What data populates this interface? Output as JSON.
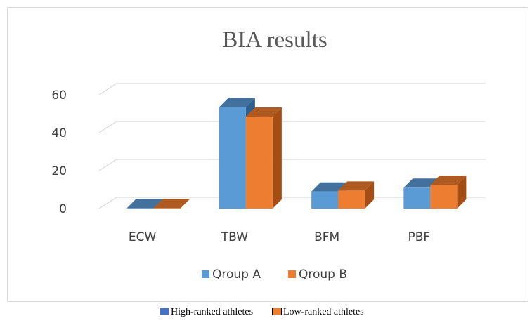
{
  "chart_data": {
    "type": "bar",
    "title": "BIA results",
    "xlabel": "",
    "ylabel": "",
    "categories": [
      "ECW",
      "TBW",
      "BFM",
      "PBF"
    ],
    "series": [
      {
        "name": "Qroup A",
        "values": [
          0.3,
          53.5,
          9,
          11
        ]
      },
      {
        "name": "Qroup B",
        "values": [
          0.3,
          48.5,
          9.5,
          12.5
        ]
      }
    ],
    "ylim": [
      0,
      60
    ],
    "yticks": [
      "0",
      "20",
      "40",
      "60"
    ],
    "grid": true,
    "legend_position": "bottom"
  },
  "colors": {
    "series_front": [
      "#5b9bd5",
      "#ed7d31"
    ],
    "series_top": [
      "#41719c",
      "#ae5a21"
    ],
    "series_side": [
      "#2e5f8f",
      "#a64d14"
    ],
    "grid": "#d9d9d9"
  },
  "caption": {
    "items": [
      {
        "label": "High-ranked athletes",
        "color": "#4472c4"
      },
      {
        "label": "Low-ranked athletes",
        "color": "#ed7d31"
      }
    ]
  }
}
